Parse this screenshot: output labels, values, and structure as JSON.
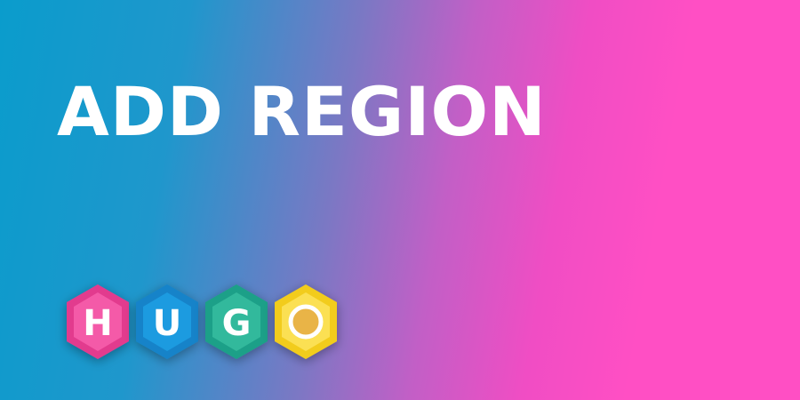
{
  "banner": {
    "title": "ADD REGION"
  },
  "logo": {
    "letters": [
      "H",
      "U",
      "G",
      "O"
    ],
    "colors": {
      "h_outer": "#e23a8e",
      "h_inner": "#f45aa8",
      "u_outer": "#1383c9",
      "u_inner": "#1e9be0",
      "g_outer": "#1fa088",
      "g_inner": "#33b99c",
      "o_outer": "#f2cc1f",
      "o_inner": "#e9b447"
    }
  }
}
